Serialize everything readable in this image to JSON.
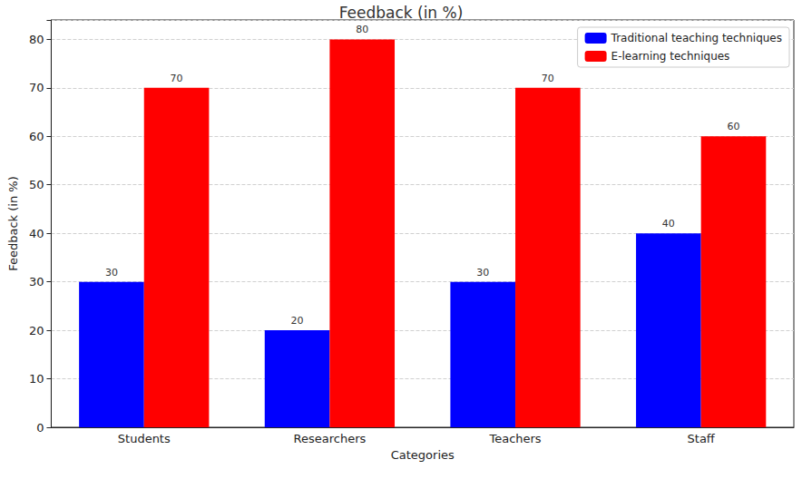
{
  "chart_data": {
    "type": "bar",
    "title": "Feedback (in %)",
    "x_label": "Categories",
    "y_label": "Feedback (in %)",
    "categories": [
      "Students",
      "Researchers",
      "Teachers",
      "Staff"
    ],
    "series": [
      {
        "name": "Traditional teaching techniques",
        "color": "#0000ff",
        "values": [
          30,
          20,
          30,
          40
        ]
      },
      {
        "name": "E-learning techniques",
        "color": "#ff0000",
        "values": [
          70,
          80,
          70,
          60
        ]
      }
    ],
    "ylim": [
      0,
      84
    ],
    "yticks": [
      0,
      10,
      20,
      30,
      40,
      50,
      60,
      70,
      80
    ],
    "grid": true,
    "legend": "upper right",
    "data_labels": true
  }
}
